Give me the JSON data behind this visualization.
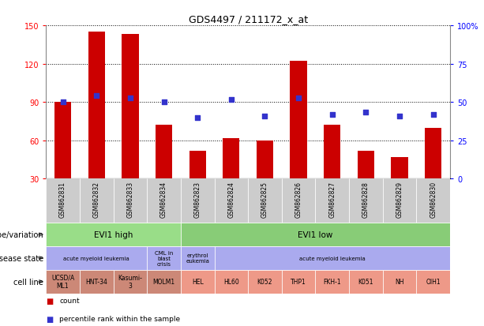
{
  "title": "GDS4497 / 211172_x_at",
  "samples": [
    "GSM862831",
    "GSM862832",
    "GSM862833",
    "GSM862834",
    "GSM862823",
    "GSM862824",
    "GSM862825",
    "GSM862826",
    "GSM862827",
    "GSM862828",
    "GSM862829",
    "GSM862830"
  ],
  "bar_values": [
    90,
    145,
    143,
    72,
    52,
    62,
    60,
    122,
    72,
    52,
    47,
    70
  ],
  "dot_values": [
    90,
    95,
    93,
    90,
    78,
    92,
    79,
    93,
    80,
    82,
    79,
    80
  ],
  "ylim_left": [
    30,
    150
  ],
  "ylim_right": [
    0,
    100
  ],
  "yticks_left": [
    30,
    60,
    90,
    120,
    150
  ],
  "yticks_right": [
    0,
    25,
    50,
    75,
    100
  ],
  "ytick_right_labels": [
    "0",
    "25",
    "50",
    "75",
    "100%"
  ],
  "bar_color": "#cc0000",
  "dot_color": "#3333cc",
  "plot_bg": "#ffffff",
  "xticklabel_bg": "#cccccc",
  "genotype_row": {
    "label": "genotype/variation",
    "groups": [
      {
        "text": "EVI1 high",
        "start": 0,
        "end": 4,
        "color": "#99dd88"
      },
      {
        "text": "EVI1 low",
        "start": 4,
        "end": 12,
        "color": "#88cc77"
      }
    ]
  },
  "disease_row": {
    "label": "disease state",
    "groups": [
      {
        "text": "acute myeloid leukemia",
        "start": 0,
        "end": 3,
        "color": "#aaaaee"
      },
      {
        "text": "CML in\nblast\ncrisis",
        "start": 3,
        "end": 4,
        "color": "#aaaaee"
      },
      {
        "text": "erythrol\neukemia",
        "start": 4,
        "end": 5,
        "color": "#aaaaee"
      },
      {
        "text": "acute myeloid leukemia",
        "start": 5,
        "end": 12,
        "color": "#aaaaee"
      }
    ]
  },
  "cell_row": {
    "label": "cell line",
    "cells": [
      {
        "text": "UCSD/A\nML1",
        "start": 0,
        "end": 1,
        "color": "#cc8877"
      },
      {
        "text": "HNT-34",
        "start": 1,
        "end": 2,
        "color": "#cc8877"
      },
      {
        "text": "Kasumi-\n3",
        "start": 2,
        "end": 3,
        "color": "#cc8877"
      },
      {
        "text": "MOLM1",
        "start": 3,
        "end": 4,
        "color": "#cc8877"
      },
      {
        "text": "HEL",
        "start": 4,
        "end": 5,
        "color": "#ee9988"
      },
      {
        "text": "HL60",
        "start": 5,
        "end": 6,
        "color": "#ee9988"
      },
      {
        "text": "K052",
        "start": 6,
        "end": 7,
        "color": "#ee9988"
      },
      {
        "text": "THP1",
        "start": 7,
        "end": 8,
        "color": "#ee9988"
      },
      {
        "text": "FKH-1",
        "start": 8,
        "end": 9,
        "color": "#ee9988"
      },
      {
        "text": "K051",
        "start": 9,
        "end": 10,
        "color": "#ee9988"
      },
      {
        "text": "NH",
        "start": 10,
        "end": 11,
        "color": "#ee9988"
      },
      {
        "text": "OIH1",
        "start": 11,
        "end": 12,
        "color": "#ee9988"
      }
    ]
  }
}
